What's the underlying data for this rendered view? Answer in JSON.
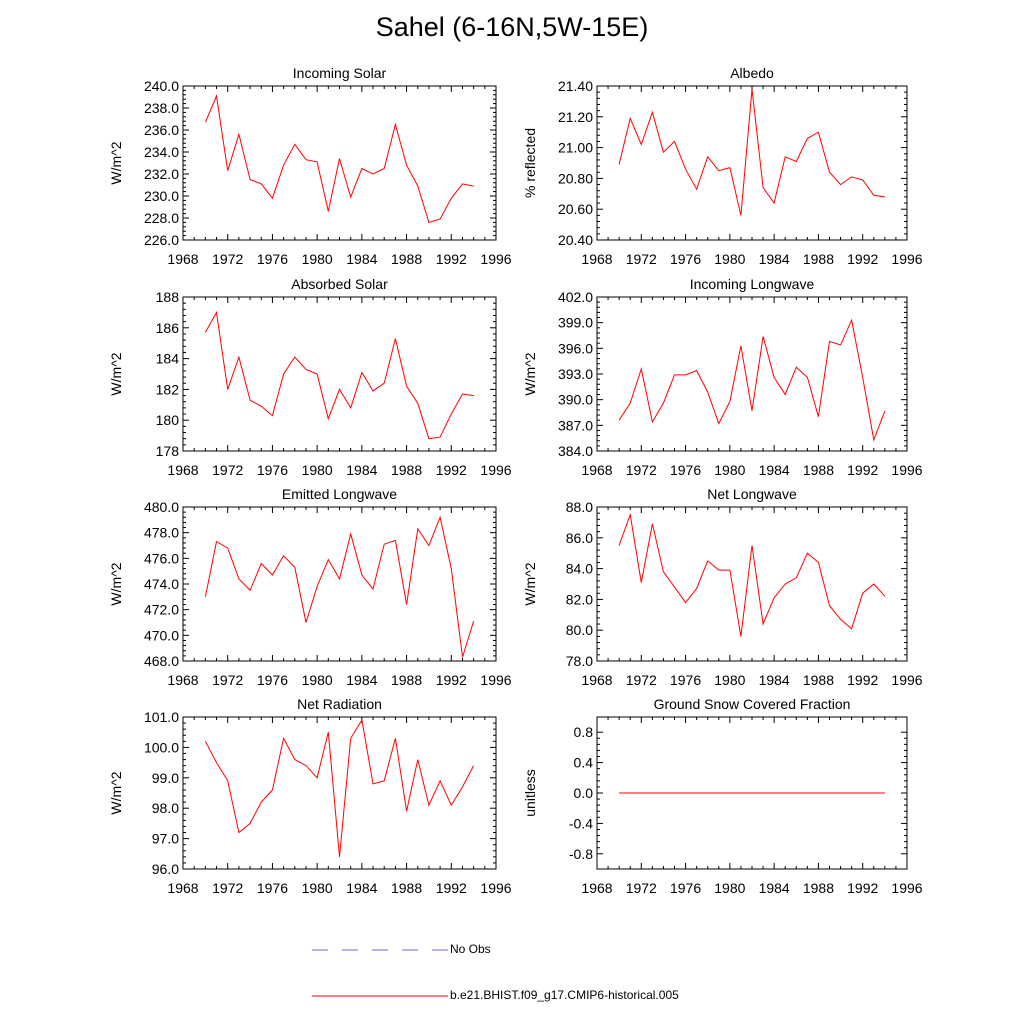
{
  "figure": {
    "title": "Sahel (6-16N,5W-15E)"
  },
  "legend": [
    {
      "label": "No Obs",
      "style": "dashed",
      "color": "#6a6ad0"
    },
    {
      "label": "b.e21.BHIST.f09_g17.CMIP6-historical.005",
      "style": "solid",
      "color": "#ff0000"
    }
  ],
  "chart_data": [
    {
      "type": "line",
      "title": "Incoming Solar",
      "xlabel": "",
      "ylabel": "W/m^2",
      "xlim": [
        1968,
        1996
      ],
      "ylim": [
        226,
        240
      ],
      "yticks": [
        226,
        228,
        230,
        232,
        234,
        236,
        238,
        240
      ],
      "ytick_labels": [
        "226.0",
        "228.0",
        "230.0",
        "232.0",
        "234.0",
        "236.0",
        "238.0",
        "240.0"
      ],
      "x": [
        1970,
        1971,
        1972,
        1973,
        1974,
        1975,
        1976,
        1977,
        1978,
        1979,
        1980,
        1981,
        1982,
        1983,
        1984,
        1985,
        1986,
        1987,
        1988,
        1989,
        1990,
        1991,
        1992,
        1993,
        1994
      ],
      "series": [
        {
          "name": "b.e21.BHIST.f09_g17.CMIP6-historical.005",
          "color": "#ff0000",
          "values": [
            236.7,
            239.1,
            232.3,
            235.6,
            231.5,
            231.1,
            229.8,
            232.8,
            234.7,
            233.3,
            233.1,
            228.6,
            233.4,
            229.9,
            232.5,
            232.0,
            232.5,
            236.5,
            232.8,
            230.9,
            227.6,
            227.9,
            229.8,
            231.1,
            230.9
          ]
        }
      ]
    },
    {
      "type": "line",
      "title": "Albedo",
      "xlabel": "",
      "ylabel": "% reflected",
      "xlim": [
        1968,
        1996
      ],
      "ylim": [
        20.4,
        21.4
      ],
      "yticks": [
        20.4,
        20.6,
        20.8,
        21.0,
        21.2,
        21.4
      ],
      "ytick_labels": [
        "20.40",
        "20.60",
        "20.80",
        "21.00",
        "21.20",
        "21.40"
      ],
      "x": [
        1970,
        1971,
        1972,
        1973,
        1974,
        1975,
        1976,
        1977,
        1978,
        1979,
        1980,
        1981,
        1982,
        1983,
        1984,
        1985,
        1986,
        1987,
        1988,
        1989,
        1990,
        1991,
        1992,
        1993,
        1994
      ],
      "series": [
        {
          "name": "b.e21.BHIST.f09_g17.CMIP6-historical.005",
          "color": "#ff0000",
          "values": [
            20.89,
            21.19,
            21.02,
            21.23,
            20.97,
            21.04,
            20.86,
            20.73,
            20.94,
            20.85,
            20.87,
            20.56,
            21.38,
            20.74,
            20.64,
            20.94,
            20.91,
            21.06,
            21.1,
            20.84,
            20.76,
            20.81,
            20.79,
            20.69,
            20.68
          ]
        }
      ]
    },
    {
      "type": "line",
      "title": "Absorbed Solar",
      "xlabel": "",
      "ylabel": "W/m^2",
      "xlim": [
        1968,
        1996
      ],
      "ylim": [
        178,
        188
      ],
      "yticks": [
        178,
        180,
        182,
        184,
        186,
        188
      ],
      "ytick_labels": [
        "178",
        "180",
        "182",
        "184",
        "186",
        "188"
      ],
      "x": [
        1970,
        1971,
        1972,
        1973,
        1974,
        1975,
        1976,
        1977,
        1978,
        1979,
        1980,
        1981,
        1982,
        1983,
        1984,
        1985,
        1986,
        1987,
        1988,
        1989,
        1990,
        1991,
        1992,
        1993,
        1994
      ],
      "series": [
        {
          "name": "b.e21.BHIST.f09_g17.CMIP6-historical.005",
          "color": "#ff0000",
          "values": [
            185.7,
            187.0,
            182.0,
            184.1,
            181.3,
            180.9,
            180.3,
            183.0,
            184.1,
            183.3,
            183.0,
            180.1,
            182.0,
            180.8,
            183.1,
            181.9,
            182.4,
            185.3,
            182.2,
            181.1,
            178.8,
            178.9,
            180.4,
            181.7,
            181.6
          ]
        }
      ]
    },
    {
      "type": "line",
      "title": "Incoming Longwave",
      "xlabel": "",
      "ylabel": "W/m^2",
      "xlim": [
        1968,
        1996
      ],
      "ylim": [
        384,
        402
      ],
      "yticks": [
        384,
        387,
        390,
        393,
        396,
        399,
        402
      ],
      "ytick_labels": [
        "384.0",
        "387.0",
        "390.0",
        "393.0",
        "396.0",
        "399.0",
        "402.0"
      ],
      "x": [
        1970,
        1971,
        1972,
        1973,
        1974,
        1975,
        1976,
        1977,
        1978,
        1979,
        1980,
        1981,
        1982,
        1983,
        1984,
        1985,
        1986,
        1987,
        1988,
        1989,
        1990,
        1991,
        1992,
        1993,
        1994
      ],
      "series": [
        {
          "name": "b.e21.BHIST.f09_g17.CMIP6-historical.005",
          "color": "#ff0000",
          "values": [
            387.6,
            389.6,
            393.6,
            387.4,
            389.6,
            392.9,
            392.9,
            393.4,
            390.9,
            387.2,
            389.8,
            396.3,
            388.7,
            397.4,
            392.6,
            390.6,
            393.8,
            392.6,
            388.0,
            396.8,
            396.4,
            399.3,
            392.6,
            385.3,
            388.7
          ]
        }
      ]
    },
    {
      "type": "line",
      "title": "Emitted Longwave",
      "xlabel": "",
      "ylabel": "W/m^2",
      "xlim": [
        1968,
        1996
      ],
      "ylim": [
        468,
        480
      ],
      "yticks": [
        468,
        470,
        472,
        474,
        476,
        478,
        480
      ],
      "ytick_labels": [
        "468.0",
        "470.0",
        "472.0",
        "474.0",
        "476.0",
        "478.0",
        "480.0"
      ],
      "x": [
        1970,
        1971,
        1972,
        1973,
        1974,
        1975,
        1976,
        1977,
        1978,
        1979,
        1980,
        1981,
        1982,
        1983,
        1984,
        1985,
        1986,
        1987,
        1988,
        1989,
        1990,
        1991,
        1992,
        1993,
        1994
      ],
      "series": [
        {
          "name": "b.e21.BHIST.f09_g17.CMIP6-historical.005",
          "color": "#ff0000",
          "values": [
            473.0,
            477.3,
            476.8,
            474.4,
            473.5,
            475.6,
            474.7,
            476.2,
            475.3,
            471.0,
            473.8,
            475.9,
            474.4,
            477.9,
            474.7,
            473.6,
            477.1,
            477.4,
            472.4,
            478.3,
            477.0,
            479.2,
            475.2,
            468.3,
            471.1
          ]
        }
      ]
    },
    {
      "type": "line",
      "title": "Net Longwave",
      "xlabel": "",
      "ylabel": "W/m^2",
      "xlim": [
        1968,
        1996
      ],
      "ylim": [
        78,
        88
      ],
      "yticks": [
        78,
        80,
        82,
        84,
        86,
        88
      ],
      "ytick_labels": [
        "78.0",
        "80.0",
        "82.0",
        "84.0",
        "86.0",
        "88.0"
      ],
      "x": [
        1970,
        1971,
        1972,
        1973,
        1974,
        1975,
        1976,
        1977,
        1978,
        1979,
        1980,
        1981,
        1982,
        1983,
        1984,
        1985,
        1986,
        1987,
        1988,
        1989,
        1990,
        1991,
        1992,
        1993,
        1994
      ],
      "series": [
        {
          "name": "b.e21.BHIST.f09_g17.CMIP6-historical.005",
          "color": "#ff0000",
          "values": [
            85.5,
            87.5,
            83.1,
            86.9,
            83.8,
            82.8,
            81.8,
            82.7,
            84.5,
            83.9,
            83.9,
            79.6,
            85.5,
            80.4,
            82.1,
            83.0,
            83.4,
            85.0,
            84.4,
            81.6,
            80.7,
            80.1,
            82.4,
            83.0,
            82.2
          ]
        }
      ]
    },
    {
      "type": "line",
      "title": "Net Radiation",
      "xlabel": "",
      "ylabel": "W/m^2",
      "xlim": [
        1968,
        1996
      ],
      "ylim": [
        96,
        101
      ],
      "yticks": [
        96,
        97,
        98,
        99,
        100,
        101
      ],
      "ytick_labels": [
        "96.0",
        "97.0",
        "98.0",
        "99.0",
        "100.0",
        "101.0"
      ],
      "x": [
        1970,
        1971,
        1972,
        1973,
        1974,
        1975,
        1976,
        1977,
        1978,
        1979,
        1980,
        1981,
        1982,
        1983,
        1984,
        1985,
        1986,
        1987,
        1988,
        1989,
        1990,
        1991,
        1992,
        1993,
        1994
      ],
      "series": [
        {
          "name": "b.e21.BHIST.f09_g17.CMIP6-historical.005",
          "color": "#ff0000",
          "values": [
            100.2,
            99.5,
            98.9,
            97.2,
            97.5,
            98.2,
            98.6,
            100.3,
            99.6,
            99.4,
            99.0,
            100.5,
            96.4,
            100.3,
            100.9,
            98.8,
            98.9,
            100.3,
            97.9,
            99.6,
            98.1,
            98.9,
            98.1,
            98.7,
            99.4
          ]
        }
      ]
    },
    {
      "type": "line",
      "title": "Ground Snow Covered Fraction",
      "xlabel": "",
      "ylabel": "unitless",
      "xlim": [
        1968,
        1996
      ],
      "ylim": [
        -1.0,
        1.0
      ],
      "yticks": [
        -0.8,
        -0.4,
        0.0,
        0.4,
        0.8
      ],
      "ytick_labels": [
        "-0.8",
        "-0.4",
        "0.0",
        "0.4",
        "0.8"
      ],
      "x": [
        1970,
        1971,
        1972,
        1973,
        1974,
        1975,
        1976,
        1977,
        1978,
        1979,
        1980,
        1981,
        1982,
        1983,
        1984,
        1985,
        1986,
        1987,
        1988,
        1989,
        1990,
        1991,
        1992,
        1993,
        1994
      ],
      "series": [
        {
          "name": "b.e21.BHIST.f09_g17.CMIP6-historical.005",
          "color": "#ff0000",
          "values": [
            0,
            0,
            0,
            0,
            0,
            0,
            0,
            0,
            0,
            0,
            0,
            0,
            0,
            0,
            0,
            0,
            0,
            0,
            0,
            0,
            0,
            0,
            0,
            0,
            0
          ]
        }
      ]
    }
  ],
  "x_axis": {
    "ticks": [
      1968,
      1972,
      1976,
      1980,
      1984,
      1988,
      1992,
      1996
    ],
    "tick_labels": [
      "1968",
      "1972",
      "1976",
      "1980",
      "1984",
      "1988",
      "1992",
      "1996"
    ]
  }
}
